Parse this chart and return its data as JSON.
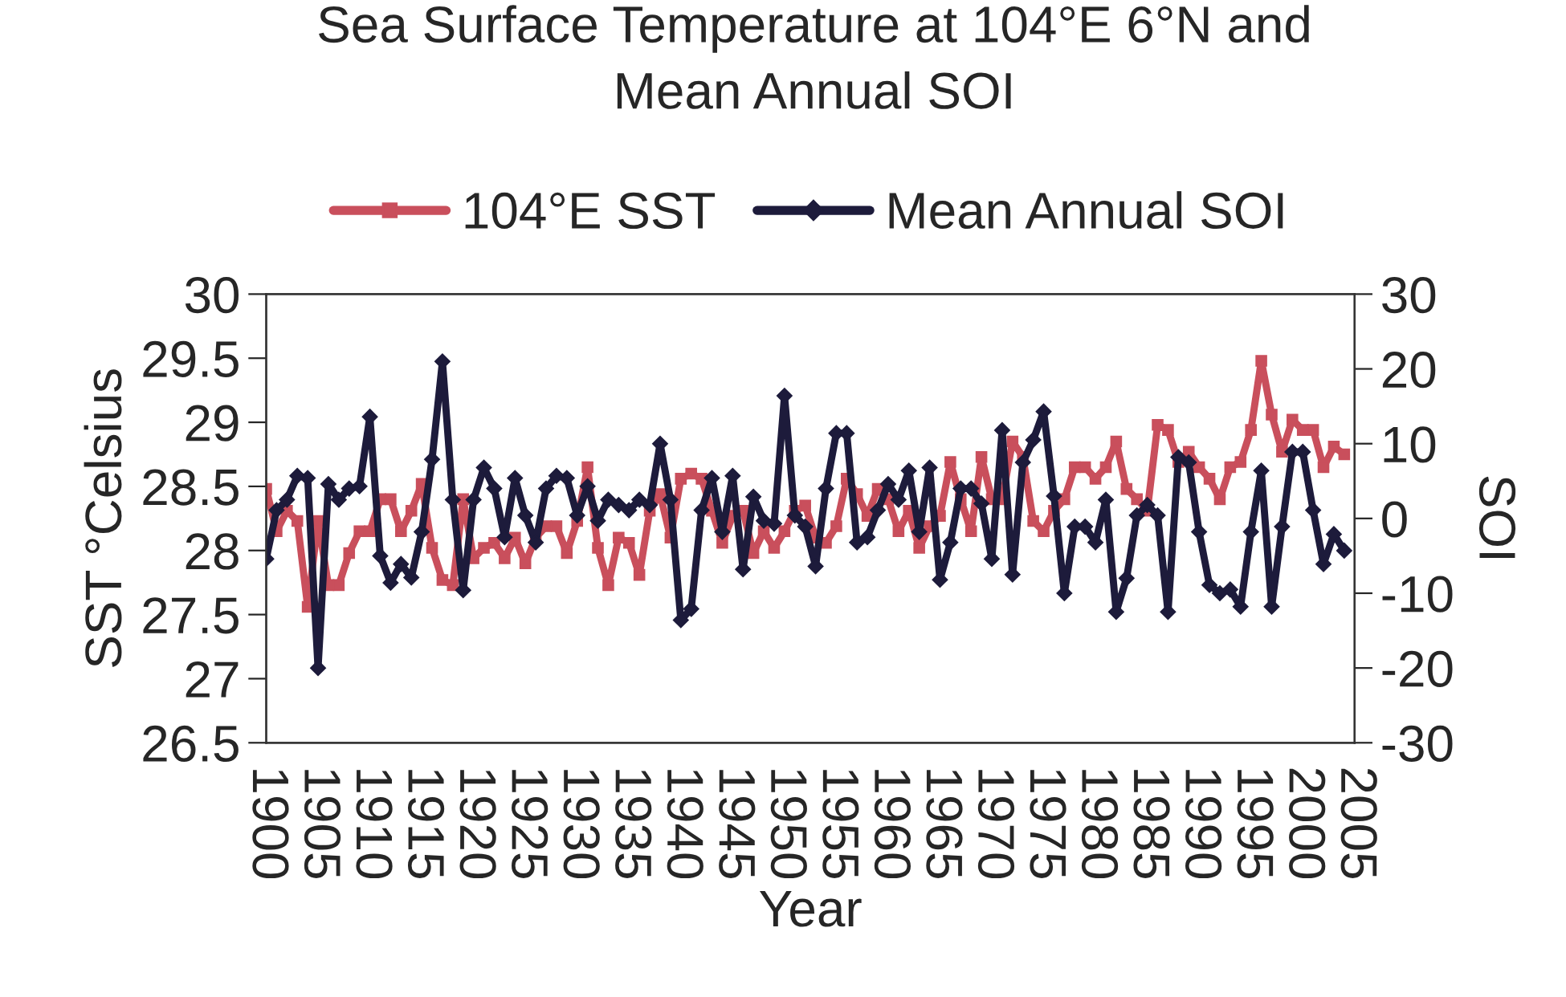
{
  "chart_data": {
    "type": "line",
    "title": "Sea Surface Temperature at 104°E 6°N and\nMean Annual SOI",
    "xlabel": "Year",
    "ylabel": "SST °Celsius",
    "y2label": "SOI",
    "x": [
      1900,
      1901,
      1902,
      1903,
      1904,
      1905,
      1906,
      1907,
      1908,
      1909,
      1910,
      1911,
      1912,
      1913,
      1914,
      1915,
      1916,
      1917,
      1918,
      1919,
      1920,
      1921,
      1922,
      1923,
      1924,
      1925,
      1926,
      1927,
      1928,
      1929,
      1930,
      1931,
      1932,
      1933,
      1934,
      1935,
      1936,
      1937,
      1938,
      1939,
      1940,
      1941,
      1942,
      1943,
      1944,
      1945,
      1946,
      1947,
      1948,
      1949,
      1950,
      1951,
      1952,
      1953,
      1954,
      1955,
      1956,
      1957,
      1958,
      1959,
      1960,
      1961,
      1962,
      1963,
      1964,
      1965,
      1966,
      1967,
      1968,
      1969,
      1970,
      1971,
      1972,
      1973,
      1974,
      1975,
      1976,
      1977,
      1978,
      1979,
      1980,
      1981,
      1982,
      1983,
      1984,
      1985,
      1986,
      1987,
      1988,
      1989,
      1990,
      1991,
      1992,
      1993,
      1994,
      1995,
      1996,
      1997,
      1998,
      1999,
      2000,
      2001,
      2002,
      2003,
      2004
    ],
    "series": [
      {
        "name": "104°E SST",
        "color": "#c94f5c",
        "marker": "square",
        "values": [
          28.48,
          28.15,
          28.31,
          28.23,
          27.56,
          28.23,
          27.73,
          27.73,
          27.98,
          28.15,
          28.15,
          28.4,
          28.4,
          28.15,
          28.31,
          28.52,
          28.02,
          27.77,
          27.73,
          28.4,
          27.94,
          28.02,
          28.06,
          27.94,
          28.1,
          27.9,
          28.1,
          28.19,
          28.19,
          27.98,
          28.23,
          28.65,
          28.02,
          27.73,
          28.1,
          28.06,
          27.81,
          28.31,
          28.44,
          28.1,
          28.56,
          28.6,
          28.56,
          28.31,
          28.06,
          28.27,
          28.31,
          27.98,
          28.15,
          28.02,
          28.15,
          28.31,
          28.35,
          28.1,
          28.06,
          28.19,
          28.56,
          28.44,
          28.27,
          28.48,
          28.4,
          28.15,
          28.31,
          28.02,
          28.19,
          28.27,
          28.69,
          28.4,
          28.15,
          28.73,
          28.4,
          28.4,
          28.85,
          28.73,
          28.23,
          28.15,
          28.31,
          28.4,
          28.65,
          28.65,
          28.56,
          28.65,
          28.85,
          28.48,
          28.4,
          28.31,
          28.98,
          28.94,
          28.69,
          28.77,
          28.65,
          28.56,
          28.4,
          28.65,
          28.69,
          28.94,
          29.48,
          29.06,
          28.77,
          29.02,
          28.94,
          28.94,
          28.65,
          28.81,
          28.75
        ]
      },
      {
        "name": "Mean Annual SOI",
        "color": "#1d1b3b",
        "marker": "diamond",
        "axis": "y2",
        "values": [
          -5.4,
          1.1,
          2.5,
          5.7,
          5.4,
          -20,
          4.6,
          2.5,
          4,
          4.3,
          13.6,
          -5,
          -8.6,
          -6.1,
          -7.9,
          -1.8,
          7.9,
          21,
          2.5,
          -9.6,
          2.5,
          6.8,
          4,
          -2.5,
          5.4,
          0.4,
          -3.2,
          4,
          5.7,
          5.4,
          0.4,
          4.3,
          -0.3,
          2.5,
          1.8,
          1.1,
          2.5,
          1.8,
          10,
          2.5,
          -13.6,
          -12.1,
          1.1,
          5.4,
          -1.8,
          5.7,
          -6.8,
          2.9,
          -0.3,
          -0.7,
          16.4,
          0.4,
          -1.1,
          -6.4,
          4,
          11.4,
          11.4,
          -3.2,
          -2.5,
          1.1,
          4.6,
          2.5,
          6.4,
          -1.8,
          6.8,
          -8.2,
          -3.2,
          4,
          4,
          2,
          -5.4,
          11.8,
          -7.5,
          7.5,
          10.5,
          14.3,
          3,
          -10,
          -1.1,
          -1.1,
          -3.2,
          2.5,
          -12.5,
          -8,
          0.4,
          1.8,
          0.4,
          -12.5,
          8.2,
          7.5,
          -1.8,
          -8.9,
          -10,
          -9.5,
          -11.8,
          -1.8,
          6.4,
          -11.8,
          -1.1,
          8.9,
          8.9,
          1.1,
          -6.1,
          -2.1,
          -4.3
        ]
      }
    ],
    "xlim": [
      1900,
      2005
    ],
    "xticks": [
      1900,
      1905,
      1910,
      1915,
      1920,
      1925,
      1930,
      1935,
      1940,
      1945,
      1950,
      1955,
      1960,
      1965,
      1970,
      1975,
      1980,
      1985,
      1990,
      1995,
      2000,
      2005
    ],
    "ylim": [
      26.5,
      30
    ],
    "yticks": [
      26.5,
      27,
      27.5,
      28,
      28.5,
      29,
      29.5,
      30
    ],
    "y2lim": [
      -30,
      30
    ],
    "y2ticks": [
      -30,
      -20,
      -10,
      0,
      10,
      20,
      30
    ],
    "grid": false,
    "legend": "top",
    "line_style": "solid"
  }
}
